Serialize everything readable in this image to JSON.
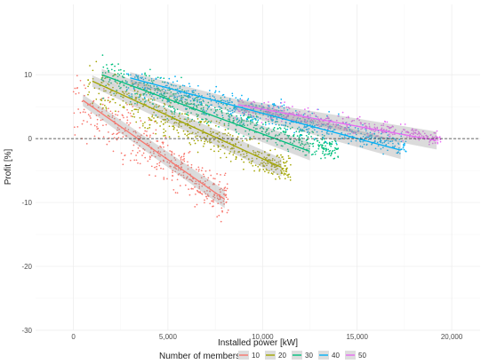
{
  "chart_data": {
    "type": "scatter",
    "xlabel": "Installed power [kW]",
    "ylabel": "Profit [%]",
    "xlim": [
      -2000,
      21500
    ],
    "ylim": [
      -30,
      21
    ],
    "x_ticks": [
      0,
      5000,
      10000,
      15000,
      20000
    ],
    "x_tick_labels": [
      "0",
      "5,000",
      "10,000",
      "15,000",
      "20,000"
    ],
    "y_ticks": [
      -30,
      -20,
      -10,
      0,
      10
    ],
    "y_tick_labels": [
      "-30",
      "-20",
      "-10",
      "0",
      "10"
    ],
    "grid": true,
    "reference_line": {
      "y": 0,
      "style": "dashed"
    },
    "legend": {
      "title": "Number of members",
      "placement": "bottom"
    },
    "series": [
      {
        "name": "10",
        "color": "#F8766D",
        "x_range": [
          0,
          8200
        ],
        "y_center_start": 6,
        "y_center_end": -9.5,
        "spread": 6.5,
        "trend": {
          "x": [
            500,
            8000
          ],
          "y": [
            6,
            -9.5
          ]
        }
      },
      {
        "name": "20",
        "color": "#A3A500",
        "x_range": [
          700,
          11500
        ],
        "y_center_start": 8.5,
        "y_center_end": -5,
        "spread": 4.5,
        "trend": {
          "x": [
            1000,
            11000
          ],
          "y": [
            9,
            -4.5
          ]
        }
      },
      {
        "name": "30",
        "color": "#00BF7D",
        "x_range": [
          1300,
          14000
        ],
        "y_center_start": 10,
        "y_center_end": -2,
        "spread": 3.8,
        "trend": {
          "x": [
            1500,
            12500
          ],
          "y": [
            10,
            -2
          ]
        }
      },
      {
        "name": "40",
        "color": "#00B0F6",
        "x_range": [
          2800,
          17600
        ],
        "y_center_start": 9,
        "y_center_end": -1.2,
        "spread": 3.2,
        "trend": {
          "x": [
            3000,
            17300
          ],
          "y": [
            9.5,
            -1.8
          ]
        }
      },
      {
        "name": "50",
        "color": "#E76BF3",
        "x_range": [
          8500,
          19500
        ],
        "y_center_start": 5,
        "y_center_end": 0,
        "spread": 2.2,
        "trend": {
          "x": [
            8700,
            19200
          ],
          "y": [
            5.3,
            -0.3
          ]
        }
      }
    ]
  }
}
